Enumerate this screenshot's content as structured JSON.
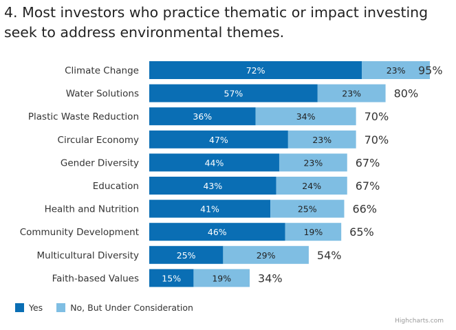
{
  "chart_data": {
    "type": "bar",
    "orientation": "horizontal",
    "stacked": true,
    "title_lines": [
      "4. Most investors who practice thematic or impact investing",
      "seek to address environmental themes."
    ],
    "categories": [
      "Climate Change",
      "Water Solutions",
      "Plastic Waste Reduction",
      "Circular Economy",
      "Gender Diversity",
      "Education",
      "Health and Nutrition",
      "Community Development",
      "Multicultural Diversity",
      "Faith-based Values"
    ],
    "series": [
      {
        "name": "Yes",
        "color": "#0a6eb4",
        "label_color": "#ffffff",
        "values": [
          72,
          57,
          36,
          47,
          44,
          43,
          41,
          46,
          25,
          15
        ]
      },
      {
        "name": "No, But Under Consideration",
        "color": "#7fbee3",
        "label_color": "#222222",
        "values": [
          23,
          23,
          34,
          23,
          23,
          24,
          25,
          19,
          29,
          19
        ]
      }
    ],
    "totals": [
      95,
      80,
      70,
      70,
      67,
      67,
      66,
      65,
      54,
      34
    ],
    "value_suffix": "%",
    "xlim": [
      0,
      95
    ],
    "grid": false,
    "legend_position": "bottom-left",
    "credits": "Highcharts.com"
  }
}
